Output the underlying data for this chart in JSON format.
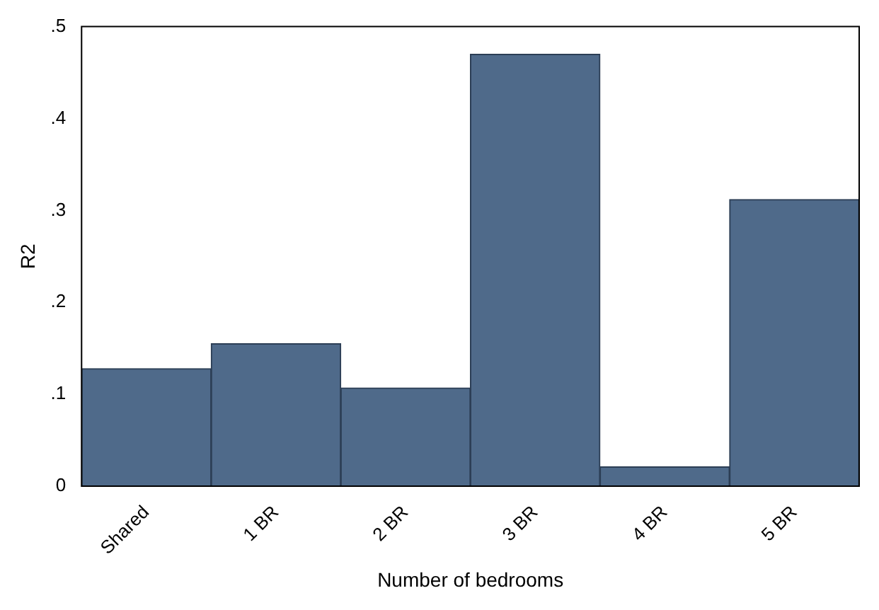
{
  "chart_data": {
    "type": "bar",
    "xlabel": "Number of bedrooms",
    "ylabel": "R2",
    "categories": [
      "Shared",
      "1 BR",
      "2 BR",
      "3 BR",
      "4 BR",
      "5 BR"
    ],
    "values": [
      0.128,
      0.155,
      0.107,
      0.47,
      0.021,
      0.312
    ],
    "color": "#4f6a8a",
    "ylim": [
      0,
      0.5
    ],
    "yticks": [
      0,
      {
        "value": 0.1,
        "label": ".1"
      },
      {
        "value": 0.2,
        "label": ".2"
      },
      {
        "value": 0.3,
        "label": ".3"
      },
      {
        "value": 0.4,
        "label": ".4"
      },
      {
        "value": 0.5,
        "label": ".5"
      }
    ],
    "grid": false,
    "legend": false
  }
}
